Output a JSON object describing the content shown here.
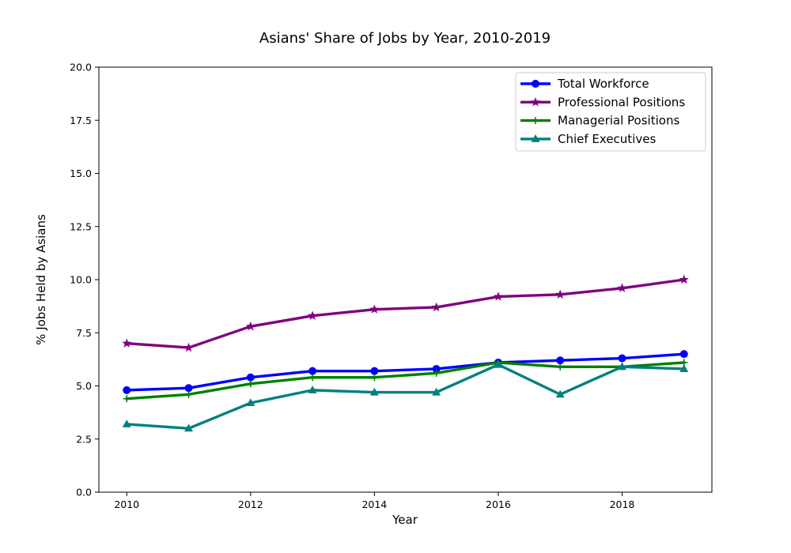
{
  "chart_data": {
    "type": "line",
    "title": "Asians' Share of Jobs by Year, 2010-2019",
    "xlabel": "Year",
    "ylabel": "% Jobs Held by Asians",
    "x": [
      2010,
      2011,
      2012,
      2013,
      2014,
      2015,
      2016,
      2017,
      2018,
      2019
    ],
    "xlim": [
      2009.55,
      2019.45
    ],
    "ylim": [
      0,
      20
    ],
    "xticks": [
      2010,
      2012,
      2014,
      2016,
      2018
    ],
    "xtick_labels": [
      "2010",
      "2012",
      "2014",
      "2016",
      "2018"
    ],
    "yticks": [
      0,
      2.5,
      5,
      7.5,
      10,
      12.5,
      15,
      17.5,
      20
    ],
    "ytick_labels": [
      "0.0",
      "2.5",
      "5.0",
      "7.5",
      "10.0",
      "12.5",
      "15.0",
      "17.5",
      "20.0"
    ],
    "grid": false,
    "legend_position": "top-right",
    "series": [
      {
        "name": "Total Workforce",
        "color": "#0000ff",
        "marker": "circle",
        "values": [
          4.8,
          4.9,
          5.4,
          5.7,
          5.7,
          5.8,
          6.1,
          6.2,
          6.3,
          6.5
        ]
      },
      {
        "name": "Professional Positions",
        "color": "#800080",
        "marker": "star",
        "values": [
          7.0,
          6.8,
          7.8,
          8.3,
          8.6,
          8.7,
          9.2,
          9.3,
          9.6,
          10.0
        ]
      },
      {
        "name": "Managerial Positions",
        "color": "#008000",
        "marker": "plus",
        "values": [
          4.4,
          4.6,
          5.1,
          5.4,
          5.4,
          5.6,
          6.1,
          5.9,
          5.9,
          6.1
        ]
      },
      {
        "name": "Chief Executives",
        "color": "#008080",
        "marker": "triangle",
        "values": [
          3.2,
          3.0,
          4.2,
          4.8,
          4.7,
          4.7,
          6.0,
          4.6,
          5.9,
          5.8
        ]
      }
    ]
  }
}
